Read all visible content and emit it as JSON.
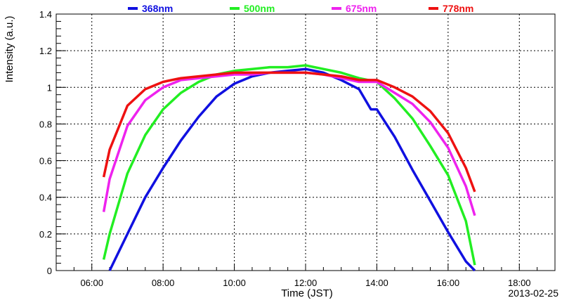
{
  "chart_data": {
    "type": "line",
    "xlabel": "Time (JST)",
    "ylabel": "Intensity (a.u.)",
    "date_label": "2013-02-25",
    "x_ticks": [
      "06:00",
      "08:00",
      "10:00",
      "12:00",
      "14:00",
      "16:00",
      "18:00"
    ],
    "y_ticks": [
      "0",
      "0.2",
      "0.4",
      "0.6",
      "0.8",
      "1",
      "1.2",
      "1.4"
    ],
    "xlim": [
      "05:00",
      "19:00"
    ],
    "ylim": [
      0,
      1.4
    ],
    "grid": true,
    "legend_position": "top",
    "series": [
      {
        "name": "368nm",
        "color": "#1010e0",
        "points": [
          [
            "06:30",
            0.0
          ],
          [
            "07:00",
            0.2
          ],
          [
            "07:30",
            0.4
          ],
          [
            "08:00",
            0.56
          ],
          [
            "08:30",
            0.71
          ],
          [
            "09:00",
            0.84
          ],
          [
            "09:30",
            0.95
          ],
          [
            "10:00",
            1.02
          ],
          [
            "10:30",
            1.06
          ],
          [
            "11:00",
            1.08
          ],
          [
            "11:30",
            1.09
          ],
          [
            "12:00",
            1.1
          ],
          [
            "12:30",
            1.08
          ],
          [
            "13:00",
            1.04
          ],
          [
            "13:30",
            0.99
          ],
          [
            "13:50",
            0.88
          ],
          [
            "14:00",
            0.88
          ],
          [
            "14:30",
            0.73
          ],
          [
            "15:00",
            0.55
          ],
          [
            "15:30",
            0.38
          ],
          [
            "16:00",
            0.21
          ],
          [
            "16:30",
            0.05
          ],
          [
            "16:45",
            0.0
          ]
        ]
      },
      {
        "name": "500nm",
        "color": "#22ee22",
        "points": [
          [
            "06:20",
            0.06
          ],
          [
            "06:30",
            0.2
          ],
          [
            "07:00",
            0.53
          ],
          [
            "07:30",
            0.74
          ],
          [
            "08:00",
            0.88
          ],
          [
            "08:30",
            0.97
          ],
          [
            "09:00",
            1.03
          ],
          [
            "09:30",
            1.07
          ],
          [
            "10:00",
            1.09
          ],
          [
            "10:30",
            1.1
          ],
          [
            "11:00",
            1.11
          ],
          [
            "11:30",
            1.11
          ],
          [
            "12:00",
            1.12
          ],
          [
            "12:30",
            1.1
          ],
          [
            "13:00",
            1.08
          ],
          [
            "13:30",
            1.05
          ],
          [
            "14:00",
            1.03
          ],
          [
            "14:30",
            0.94
          ],
          [
            "15:00",
            0.83
          ],
          [
            "15:30",
            0.68
          ],
          [
            "16:00",
            0.52
          ],
          [
            "16:30",
            0.27
          ],
          [
            "16:45",
            0.03
          ]
        ]
      },
      {
        "name": "675nm",
        "color": "#ee22ee",
        "points": [
          [
            "06:20",
            0.32
          ],
          [
            "06:30",
            0.5
          ],
          [
            "07:00",
            0.79
          ],
          [
            "07:30",
            0.93
          ],
          [
            "08:00",
            1.0
          ],
          [
            "08:30",
            1.04
          ],
          [
            "09:00",
            1.05
          ],
          [
            "09:30",
            1.06
          ],
          [
            "10:00",
            1.07
          ],
          [
            "10:30",
            1.07
          ],
          [
            "11:00",
            1.08
          ],
          [
            "11:30",
            1.08
          ],
          [
            "12:00",
            1.08
          ],
          [
            "12:30",
            1.07
          ],
          [
            "13:00",
            1.05
          ],
          [
            "13:30",
            1.03
          ],
          [
            "14:00",
            1.03
          ],
          [
            "14:30",
            0.97
          ],
          [
            "15:00",
            0.91
          ],
          [
            "15:30",
            0.81
          ],
          [
            "16:00",
            0.67
          ],
          [
            "16:30",
            0.46
          ],
          [
            "16:45",
            0.3
          ]
        ]
      },
      {
        "name": "778nm",
        "color": "#ee1111",
        "points": [
          [
            "06:20",
            0.51
          ],
          [
            "06:30",
            0.66
          ],
          [
            "07:00",
            0.9
          ],
          [
            "07:30",
            0.99
          ],
          [
            "08:00",
            1.03
          ],
          [
            "08:30",
            1.05
          ],
          [
            "09:00",
            1.06
          ],
          [
            "09:30",
            1.07
          ],
          [
            "10:00",
            1.08
          ],
          [
            "10:30",
            1.08
          ],
          [
            "11:00",
            1.08
          ],
          [
            "11:30",
            1.08
          ],
          [
            "12:00",
            1.08
          ],
          [
            "12:30",
            1.07
          ],
          [
            "13:00",
            1.06
          ],
          [
            "13:30",
            1.04
          ],
          [
            "14:00",
            1.04
          ],
          [
            "14:30",
            1.0
          ],
          [
            "15:00",
            0.95
          ],
          [
            "15:30",
            0.87
          ],
          [
            "16:00",
            0.75
          ],
          [
            "16:30",
            0.56
          ],
          [
            "16:45",
            0.43
          ]
        ]
      }
    ]
  }
}
